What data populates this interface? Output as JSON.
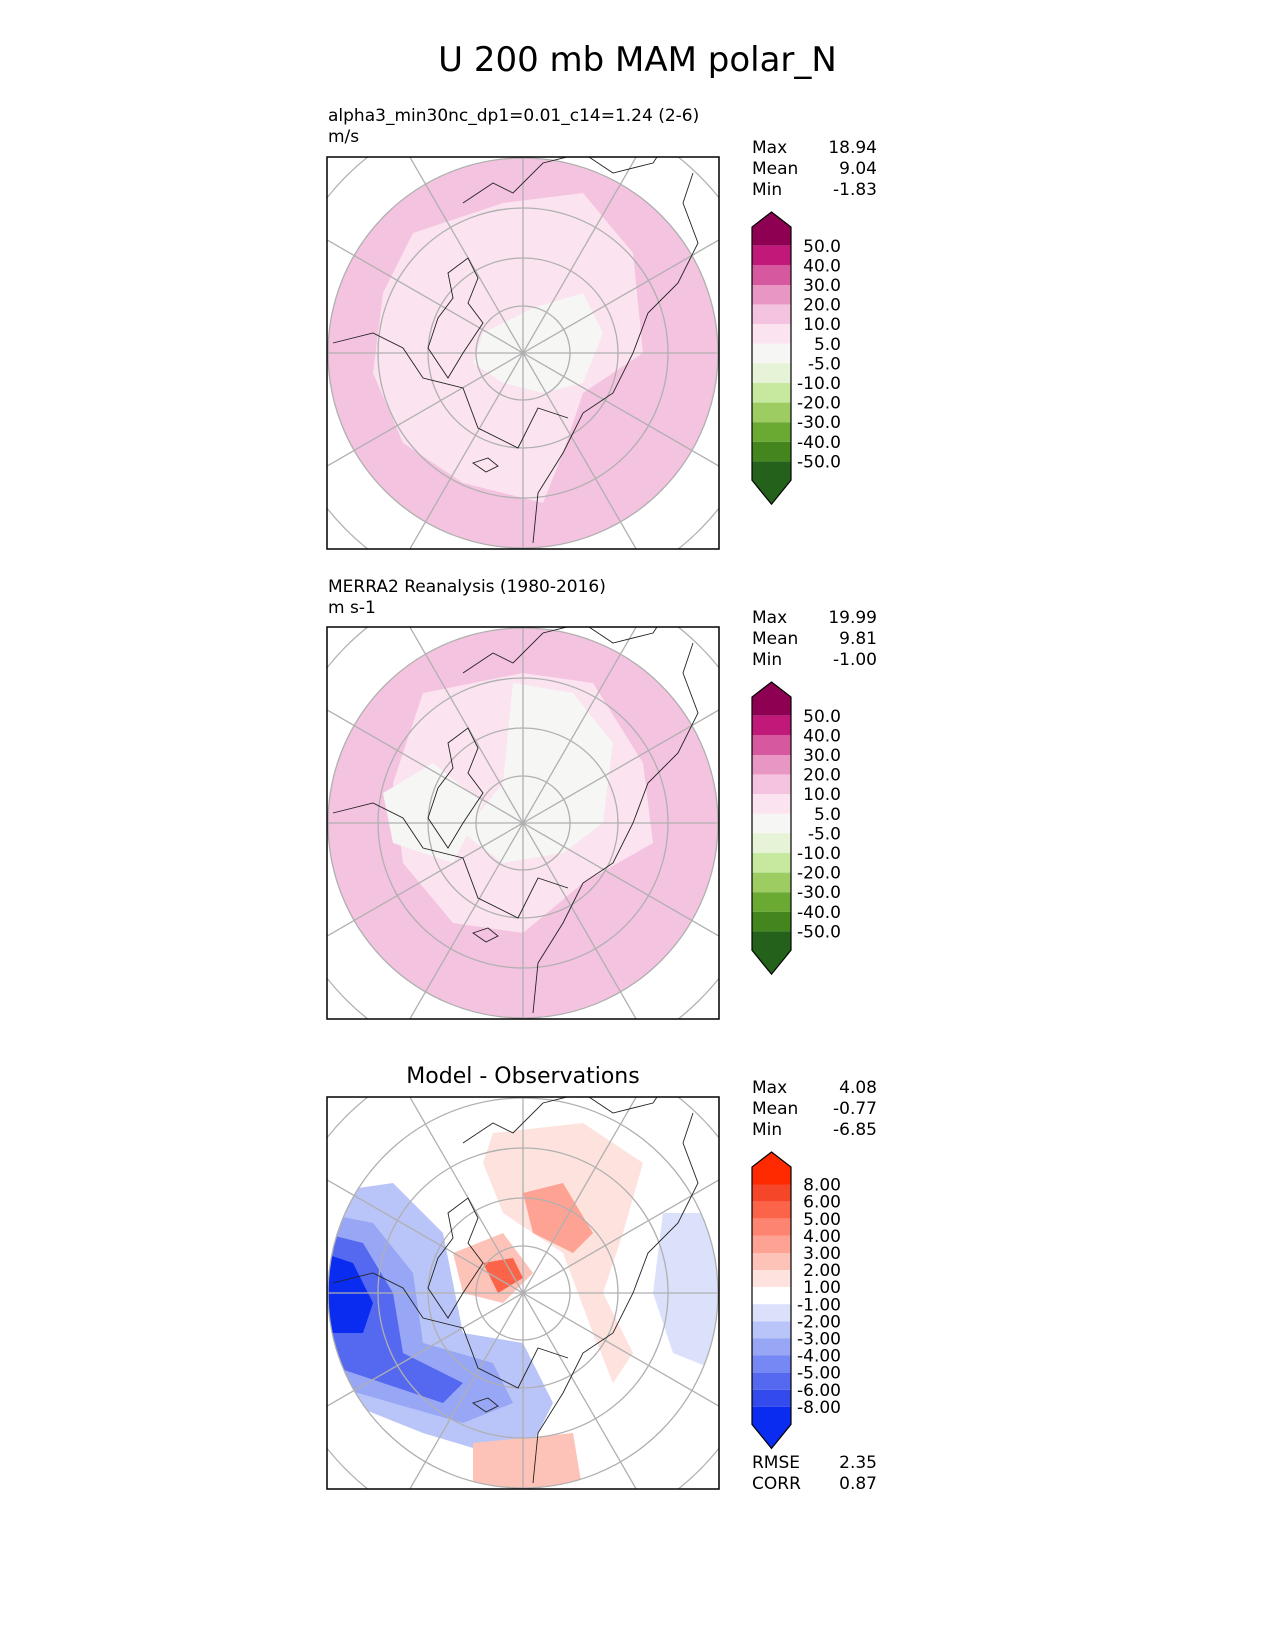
{
  "title": "U 200 mb MAM polar_N",
  "panels": [
    {
      "title_line1": "alpha3_min30nc_dp1=0.01_c14=1.24 (2-6)",
      "title_line2": "m/s",
      "stats": {
        "max_label": "Max",
        "max": "18.94",
        "mean_label": "Mean",
        "mean": "9.04",
        "min_label": "Min",
        "min": "-1.83"
      },
      "colorbar": {
        "colors": [
          "#8e0152",
          "#c0197a",
          "#d6589e",
          "#e896c4",
          "#f4c3df",
          "#fbe3ef",
          "#f6f6f4",
          "#e6f3d6",
          "#c7e89f",
          "#9dcd62",
          "#6aa932",
          "#44861d",
          "#24621b"
        ],
        "labels": [
          "50.0",
          "40.0",
          "30.0",
          "20.0",
          "10.0",
          "5.0",
          "-5.0",
          "-10.0",
          "-20.0",
          "-30.0",
          "-40.0",
          "-50.0"
        ]
      }
    },
    {
      "title_line1": "MERRA2 Reanalysis (1980-2016)",
      "title_line2": "m s-1",
      "stats": {
        "max_label": "Max",
        "max": "19.99",
        "mean_label": "Mean",
        "mean": "9.81",
        "min_label": "Min",
        "min": "-1.00"
      },
      "colorbar": {
        "colors": [
          "#8e0152",
          "#c0197a",
          "#d6589e",
          "#e896c4",
          "#f4c3df",
          "#fbe3ef",
          "#f6f6f4",
          "#e6f3d6",
          "#c7e89f",
          "#9dcd62",
          "#6aa932",
          "#44861d",
          "#24621b"
        ],
        "labels": [
          "50.0",
          "40.0",
          "30.0",
          "20.0",
          "10.0",
          "5.0",
          "-5.0",
          "-10.0",
          "-20.0",
          "-30.0",
          "-40.0",
          "-50.0"
        ]
      }
    },
    {
      "title_line1": "Model - Observations",
      "stats": {
        "max_label": "Max",
        "max": "4.08",
        "mean_label": "Mean",
        "mean": "-0.77",
        "min_label": "Min",
        "min": "-6.85"
      },
      "colorbar": {
        "colors": [
          "#ff2a00",
          "#f5462a",
          "#fc6449",
          "#fd8470",
          "#fea393",
          "#fec3b8",
          "#fde2dd",
          "#ffffff",
          "#dbe1fb",
          "#b9c4f8",
          "#97a6f5",
          "#7688f3",
          "#5569f0",
          "#334bed",
          "#0a2cf0"
        ],
        "labels": [
          "8.00",
          "6.00",
          "5.00",
          "4.00",
          "3.00",
          "2.00",
          "1.00",
          "-1.00",
          "-2.00",
          "-3.00",
          "-4.00",
          "-5.00",
          "-6.00",
          "-8.00"
        ]
      },
      "extra_stats": {
        "rmse_label": "RMSE",
        "rmse": "2.35",
        "corr_label": "CORR",
        "corr": "0.87"
      }
    }
  ]
}
